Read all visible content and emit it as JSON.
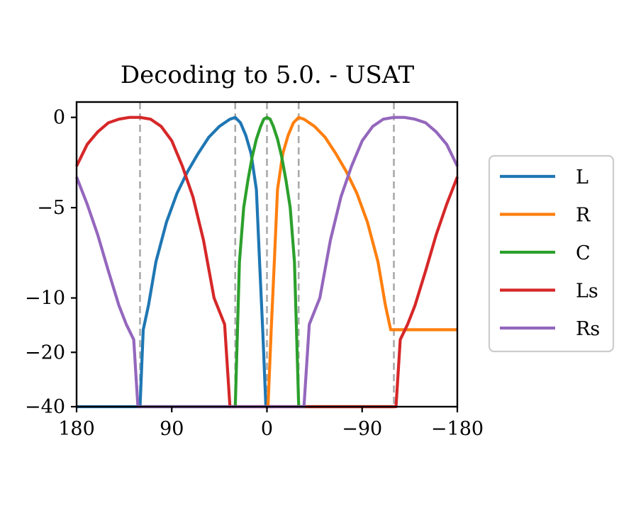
{
  "chart_data": {
    "type": "line",
    "title": "Decoding to 5.0. - USAT",
    "xlabel": "",
    "ylabel": "",
    "xlim": [
      180,
      -180
    ],
    "ylim": [
      -40,
      0
    ],
    "y_scale": "symlog",
    "x_ticks": [
      180,
      90,
      0,
      -90,
      -180
    ],
    "x_tick_labels": [
      "180",
      "90",
      "0",
      "−90",
      "−180"
    ],
    "y_ticks": [
      0,
      -5,
      -10,
      -20,
      -40
    ],
    "y_tick_labels": [
      "0",
      "−5",
      "−10",
      "−20",
      "−40"
    ],
    "grid": false,
    "reference_lines_x": [
      120,
      30,
      0,
      -30,
      -120
    ],
    "reference_line_color": "#aaaaaa",
    "legend_position": "outside-right",
    "series": [
      {
        "name": "L",
        "color": "#1f77b4",
        "x": [
          180,
          120,
          117,
          112,
          105,
          95,
          85,
          75,
          65,
          55,
          45,
          35,
          30,
          25,
          20,
          15,
          10,
          7,
          4,
          1,
          -4,
          -6
        ],
        "y": [
          -40,
          -40,
          -15,
          -11,
          -8,
          -5.8,
          -4.2,
          -3,
          -2,
          -1.1,
          -0.5,
          -0.1,
          0,
          -0.3,
          -1,
          -2,
          -4,
          -8,
          -15,
          -40,
          -40,
          -40
        ]
      },
      {
        "name": "R",
        "color": "#ff7f0e",
        "x": [
          -180,
          -120,
          -117,
          -112,
          -105,
          -95,
          -85,
          -75,
          -65,
          -55,
          -45,
          -35,
          -30,
          -25,
          -20,
          -15,
          -10,
          -7,
          -4,
          -1,
          4,
          6
        ],
        "y": [
          -15,
          -15,
          -15,
          -11,
          -8,
          -5.8,
          -4.2,
          -3,
          -2,
          -1.1,
          -0.5,
          -0.1,
          0,
          -0.3,
          -1,
          -2,
          -4,
          -8,
          -15,
          -40,
          -40,
          -40
        ]
      },
      {
        "name": "C",
        "color": "#2ca02c",
        "x": [
          120,
          117,
          30,
          26,
          22,
          18,
          14,
          10,
          6,
          3,
          0,
          -3,
          -6,
          -10,
          -14,
          -18,
          -22,
          -26,
          -30,
          -117,
          -120
        ],
        "y": [
          -40,
          -40,
          -40,
          -8,
          -5,
          -3.5,
          -2.2,
          -1.2,
          -0.5,
          -0.1,
          0,
          -0.1,
          -0.5,
          -1.2,
          -2.2,
          -3.5,
          -5,
          -8,
          -40,
          -40,
          -40
        ]
      },
      {
        "name": "Ls",
        "color": "#d62728",
        "x": [
          180,
          170,
          160,
          150,
          140,
          130,
          120,
          110,
          100,
          90,
          80,
          70,
          60,
          50,
          40,
          35,
          30,
          26,
          22,
          -120,
          -122,
          -126,
          -133,
          -140,
          -150,
          -160,
          -170,
          -180
        ],
        "y": [
          -2.7,
          -1.5,
          -0.8,
          -0.3,
          -0.1,
          0,
          0,
          -0.1,
          -0.5,
          -1.3,
          -2.7,
          -4.4,
          -6.8,
          -10,
          -14,
          -40,
          -40,
          -40,
          -40,
          -40,
          -40,
          -17,
          -14,
          -11,
          -8.5,
          -6.5,
          -4.8,
          -3.3
        ]
      },
      {
        "name": "Rs",
        "color": "#9467bd",
        "x": [
          -180,
          -170,
          -160,
          -150,
          -140,
          -130,
          -120,
          -110,
          -100,
          -90,
          -80,
          -70,
          -60,
          -50,
          -40,
          -35,
          -30,
          -26,
          -22,
          120,
          122,
          126,
          133,
          140,
          150,
          160,
          170,
          180
        ],
        "y": [
          -2.7,
          -1.5,
          -0.8,
          -0.3,
          -0.1,
          0,
          0,
          -0.1,
          -0.5,
          -1.3,
          -2.7,
          -4.4,
          -6.8,
          -10,
          -14,
          -40,
          -40,
          -40,
          -40,
          -40,
          -40,
          -17,
          -14,
          -11,
          -8.5,
          -6.5,
          -4.8,
          -3.3
        ]
      }
    ]
  }
}
